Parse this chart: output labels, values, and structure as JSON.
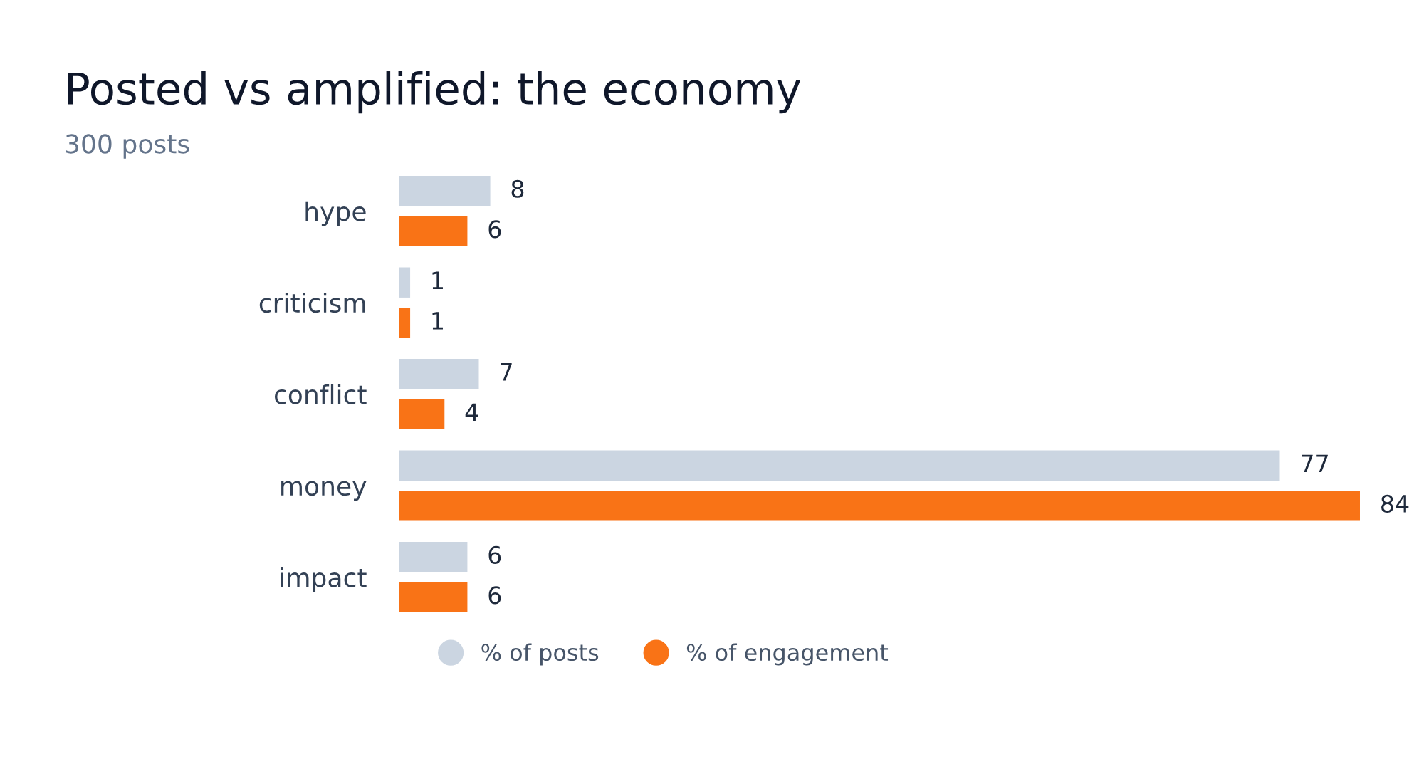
{
  "chart_data": {
    "type": "bar",
    "orientation": "horizontal",
    "title": "Posted vs amplified: the economy",
    "subtitle": "300 posts",
    "categories": [
      "hype",
      "criticism",
      "conflict",
      "money",
      "impact"
    ],
    "series": [
      {
        "name": "% of posts",
        "color": "#cbd5e1",
        "values": [
          8,
          1,
          7,
          77,
          6
        ]
      },
      {
        "name": "% of engagement",
        "color": "#f97316",
        "values": [
          6,
          1,
          4,
          84,
          6
        ]
      }
    ],
    "data_labels": true,
    "grid": false,
    "legend": "bottom"
  }
}
